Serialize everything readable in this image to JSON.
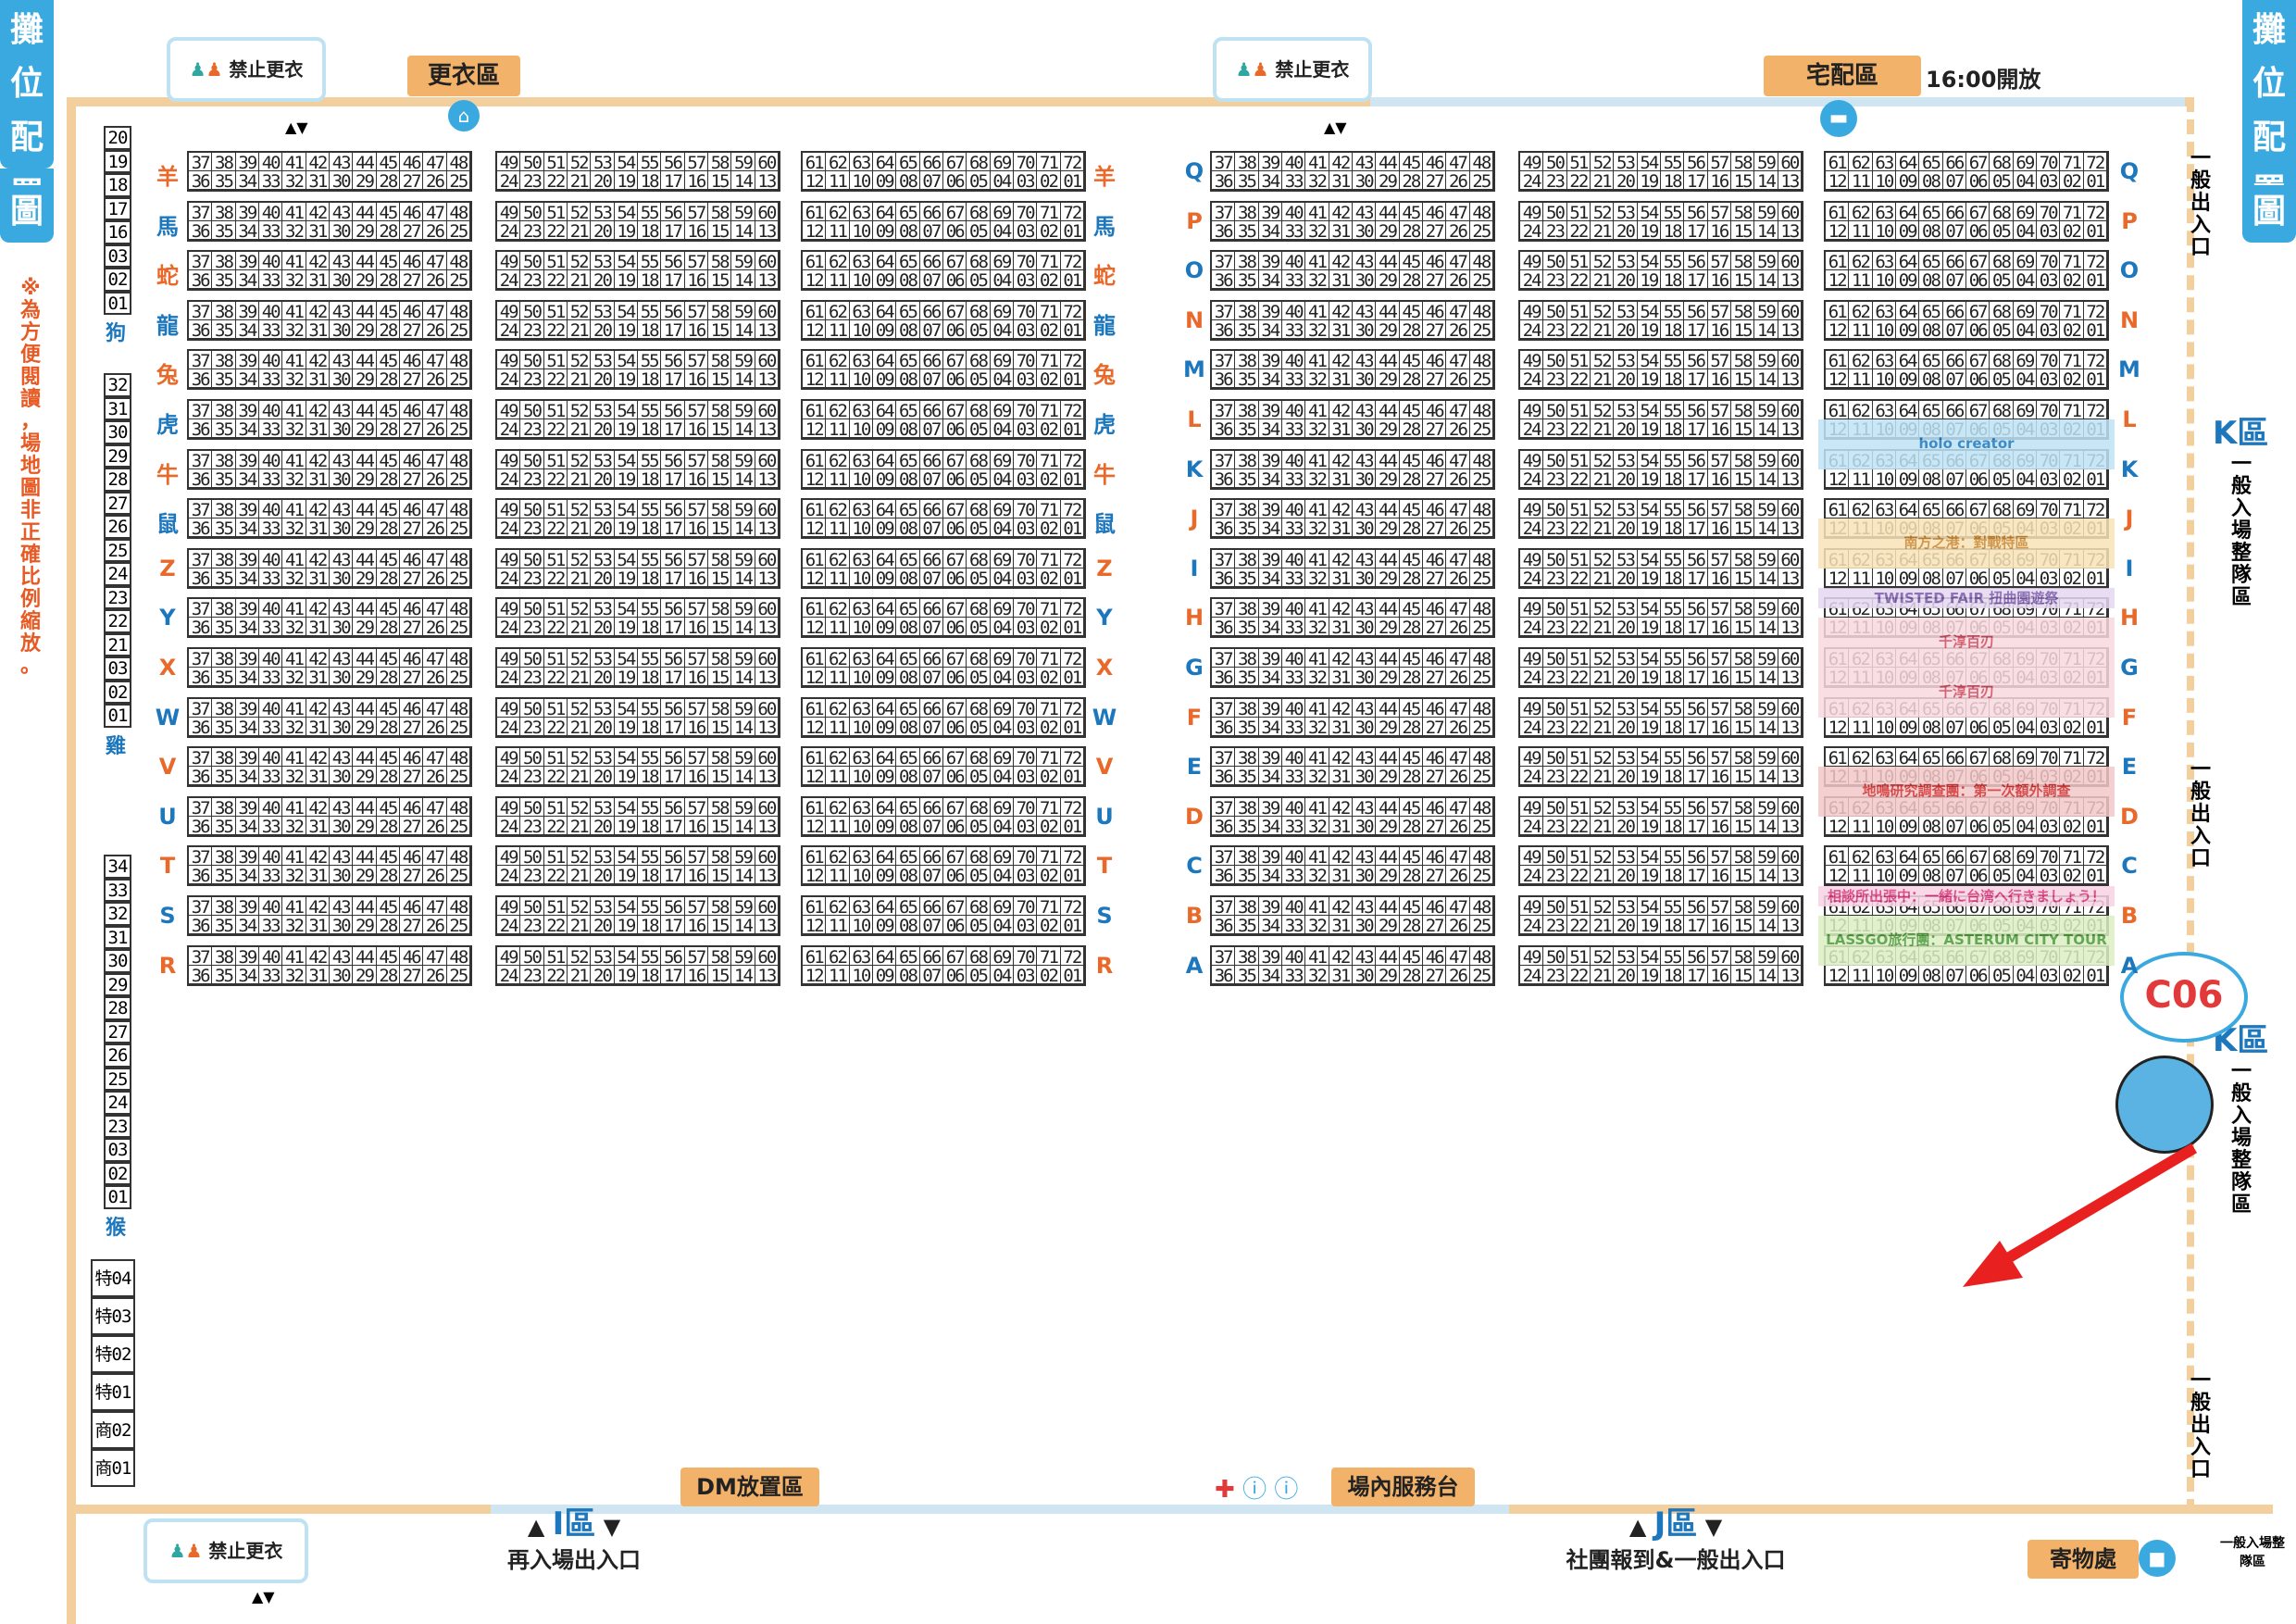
{
  "title_chars": [
    "攤",
    "位",
    "配",
    "置",
    "圖"
  ],
  "note": "※為方便閱讀，場地圖非正確比例縮放。",
  "signs": {
    "changing": "更衣區",
    "delivery": "宅配區",
    "delivery_time": "16:00開放",
    "no_changing": "禁止更衣",
    "dm": "DM放置區",
    "service": "場內服務台",
    "storage": "寄物處"
  },
  "zones": {
    "I_label": "I區",
    "I_entry": "再入場出入口",
    "J_label": "J區",
    "J_entry": "社團報到&一般出入口",
    "K_label": "K區",
    "K_sub": "一般入場整隊區",
    "exit": "一般出入口",
    "exit_small": "一般入場整隊區"
  },
  "left_rows": [
    "羊",
    "馬",
    "蛇",
    "龍",
    "兔",
    "虎",
    "牛",
    "鼠",
    "Z",
    "Y",
    "X",
    "W",
    "V",
    "U",
    "T",
    "S",
    "R"
  ],
  "right_rows": [
    "Q",
    "P",
    "O",
    "N",
    "M",
    "L",
    "K",
    "J",
    "I",
    "H",
    "G",
    "F",
    "E",
    "D",
    "C",
    "B",
    "A"
  ],
  "booth_top": {
    "a": [
      "37",
      "38",
      "39",
      "40",
      "41",
      "42",
      "43",
      "44",
      "45",
      "46",
      "47",
      "48"
    ],
    "b": [
      "49",
      "50",
      "51",
      "52",
      "53",
      "54",
      "55",
      "56",
      "57",
      "58",
      "59",
      "60"
    ],
    "c": [
      "61",
      "62",
      "63",
      "64",
      "65",
      "66",
      "67",
      "68",
      "69",
      "70",
      "71",
      "72"
    ]
  },
  "booth_bottom": {
    "a": [
      "36",
      "35",
      "34",
      "33",
      "32",
      "31",
      "30",
      "29",
      "28",
      "27",
      "26",
      "25"
    ],
    "b": [
      "24",
      "23",
      "22",
      "21",
      "20",
      "19",
      "18",
      "17",
      "16",
      "15",
      "14",
      "13"
    ],
    "c": [
      "12",
      "11",
      "10",
      "09",
      "08",
      "07",
      "06",
      "05",
      "04",
      "03",
      "02",
      "01"
    ]
  },
  "side_columns": {
    "dog": {
      "label": "狗",
      "cells": [
        "20",
        "19",
        "18",
        "17",
        "16",
        "03",
        "02",
        "01"
      ]
    },
    "chicken": {
      "label": "雞",
      "cells": [
        "32",
        "31",
        "30",
        "29",
        "28",
        "27",
        "26",
        "25",
        "24",
        "23",
        "22",
        "21",
        "03",
        "02",
        "01"
      ]
    },
    "monkey": {
      "label": "猴",
      "cells": [
        "34",
        "33",
        "32",
        "31",
        "30",
        "29",
        "28",
        "27",
        "26",
        "25",
        "24",
        "23",
        "03",
        "02",
        "01"
      ]
    },
    "special": [
      "特04",
      "特03",
      "特02",
      "特01",
      "商02",
      "商01"
    ]
  },
  "highlights": [
    {
      "label": "holo creator",
      "color": "#bfe3f5",
      "text_color": "#1d77bd"
    },
    {
      "label": "南方之港：對戰特區",
      "color": "#f8e3b8",
      "text_color": "#c9862e"
    },
    {
      "label": "TWISTED FAIR 扭曲園遊祭",
      "color": "#e4d8f0",
      "text_color": "#7a5aa8"
    },
    {
      "label": "千淳百刃",
      "color": "#f8d9df",
      "text_color": "#d1485e"
    },
    {
      "label": "千淳百刃",
      "color": "#f8d9df",
      "text_color": "#d1485e"
    },
    {
      "label": "地鳴研究調查團：第一次額外調查",
      "color": "#f4c8c8",
      "text_color": "#d13030"
    },
    {
      "label": "相談所出張中：一緒に台湾へ行きましょう！",
      "color": "#f8d3e3",
      "text_color": "#d8357a"
    },
    {
      "label": "LASSGO旅行團：ASTERUM CITY TOUR",
      "color": "#dcefc4",
      "text_color": "#4a9a3a"
    }
  ],
  "callout": "C06"
}
